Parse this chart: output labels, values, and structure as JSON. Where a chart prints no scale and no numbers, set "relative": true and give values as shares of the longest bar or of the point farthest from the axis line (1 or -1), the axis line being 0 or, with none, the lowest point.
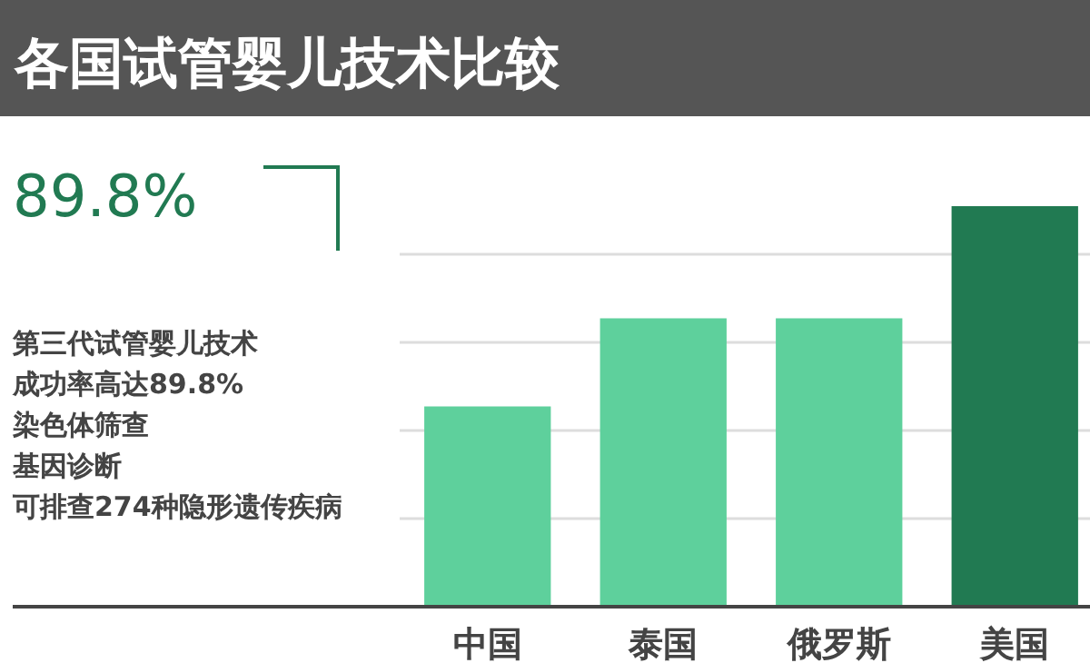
{
  "chart_data": {
    "type": "bar",
    "title": "各国试管婴儿技术比较",
    "annotations": [
      "89.8%",
      "第三代试管婴儿技术",
      "成功率高达89.8%",
      "染色体筛查",
      "基因诊断",
      "可排查274种隐形遗传疾病"
    ],
    "categories": [
      "中国",
      "泰国",
      "俄罗斯",
      "美国"
    ],
    "values": [
      0.5,
      0.72,
      0.72,
      1
    ],
    "colors": [
      "#5ed09c",
      "#5ed09c",
      "#5ed09c",
      "#217a52"
    ],
    "relative": true,
    "grid": "y"
  }
}
